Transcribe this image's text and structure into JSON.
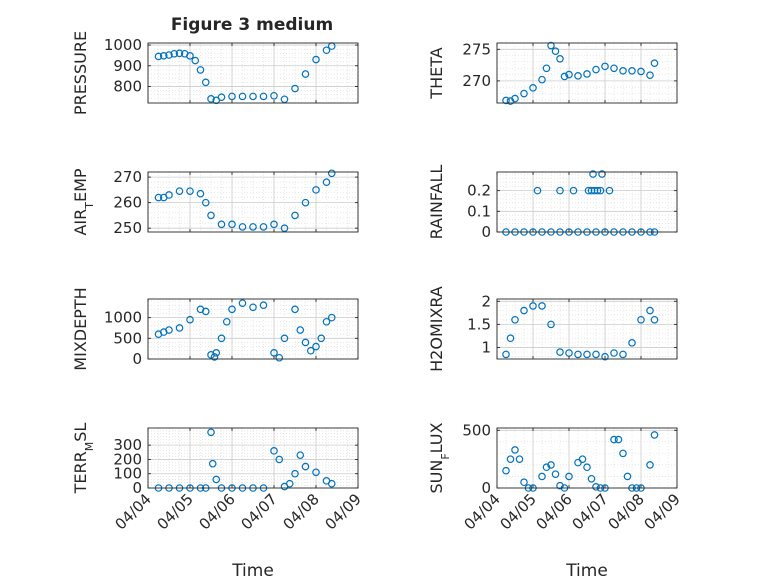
{
  "figure": {
    "title": "Figure 3 medium"
  },
  "colors": {
    "marker": "#0072BD",
    "axis": "#262626",
    "grid": "#d9d9d9",
    "background": "#ffffff"
  },
  "chart_data": [
    {
      "type": "scatter",
      "ylabel": "PRESSURE",
      "title": "Figure 3 medium",
      "xlabel": "",
      "xlim": [
        "04/04",
        "04/09"
      ],
      "xticks": [
        "04/04",
        "04/05",
        "04/06",
        "04/07",
        "04/08",
        "04/09"
      ],
      "xticklabels_visible": false,
      "ylim": [
        720,
        1010
      ],
      "yticks": [
        800,
        900,
        1000
      ],
      "grid": true,
      "x": [
        "04/04 06:00",
        "04/04 09:00",
        "04/04 12:00",
        "04/04 15:00",
        "04/04 18:00",
        "04/04 21:00",
        "04/05 00:00",
        "04/05 03:00",
        "04/05 06:00",
        "04/05 09:00",
        "04/05 12:00",
        "04/05 15:00",
        "04/05 18:00",
        "04/06 00:00",
        "04/06 06:00",
        "04/06 12:00",
        "04/06 18:00",
        "04/07 00:00",
        "04/07 06:00",
        "04/07 12:00",
        "04/07 18:00",
        "04/08 00:00",
        "04/08 06:00",
        "04/08 09:00"
      ],
      "y": [
        945,
        948,
        952,
        958,
        960,
        958,
        948,
        925,
        880,
        820,
        740,
        733,
        748,
        752,
        752,
        752,
        752,
        755,
        738,
        790,
        860,
        930,
        975,
        995
      ]
    },
    {
      "type": "scatter",
      "ylabel": "THETA",
      "xlabel": "",
      "xlim": [
        "04/04",
        "04/09"
      ],
      "xticks": [
        "04/04",
        "04/05",
        "04/06",
        "04/07",
        "04/08",
        "04/09"
      ],
      "xticklabels_visible": false,
      "ylim": [
        266.5,
        276
      ],
      "yticks": [
        270,
        275
      ],
      "grid": true,
      "x": [
        "04/04 06:00",
        "04/04 09:00",
        "04/04 12:00",
        "04/04 18:00",
        "04/05 00:00",
        "04/05 06:00",
        "04/05 09:00",
        "04/05 12:00",
        "04/05 15:00",
        "04/05 18:00",
        "04/05 21:00",
        "04/06 00:00",
        "04/06 06:00",
        "04/06 12:00",
        "04/06 18:00",
        "04/07 00:00",
        "04/07 06:00",
        "04/07 12:00",
        "04/07 18:00",
        "04/08 00:00",
        "04/08 06:00",
        "04/08 09:00"
      ],
      "y": [
        266.9,
        266.8,
        267.2,
        268.0,
        268.9,
        270.2,
        272.0,
        275.6,
        274.7,
        273.5,
        270.7,
        271.0,
        270.8,
        271.1,
        271.8,
        272.3,
        272.0,
        271.6,
        271.6,
        271.5,
        270.9,
        272.8
      ]
    },
    {
      "type": "scatter",
      "ylabel": "AIR_TEMP",
      "xlabel": "",
      "xlim": [
        "04/04",
        "04/09"
      ],
      "xticks": [
        "04/04",
        "04/05",
        "04/06",
        "04/07",
        "04/08",
        "04/09"
      ],
      "xticklabels_visible": false,
      "ylim": [
        248.5,
        272
      ],
      "yticks": [
        250,
        260,
        270
      ],
      "grid": true,
      "x": [
        "04/04 06:00",
        "04/04 09:00",
        "04/04 12:00",
        "04/04 18:00",
        "04/05 00:00",
        "04/05 06:00",
        "04/05 09:00",
        "04/05 12:00",
        "04/05 18:00",
        "04/06 00:00",
        "04/06 06:00",
        "04/06 12:00",
        "04/06 18:00",
        "04/07 00:00",
        "04/07 06:00",
        "04/07 12:00",
        "04/07 18:00",
        "04/08 00:00",
        "04/08 06:00",
        "04/08 09:00"
      ],
      "y": [
        262.0,
        262.0,
        263.0,
        264.5,
        264.5,
        263.5,
        260.0,
        255.0,
        251.5,
        251.5,
        250.5,
        250.5,
        250.5,
        251.5,
        250.0,
        255.0,
        260.0,
        265.0,
        268.0,
        271.5
      ]
    },
    {
      "type": "scatter",
      "ylabel": "RAINFALL",
      "xlabel": "",
      "xlim": [
        "04/04",
        "04/09"
      ],
      "xticks": [
        "04/04",
        "04/05",
        "04/06",
        "04/07",
        "04/08",
        "04/09"
      ],
      "xticklabels_visible": false,
      "ylim": [
        0,
        0.29
      ],
      "yticks": [
        0,
        0.1,
        0.2
      ],
      "grid": true,
      "x": [
        "04/04 06:00",
        "04/04 12:00",
        "04/04 18:00",
        "04/05 00:00",
        "04/05 06:00",
        "04/05 12:00",
        "04/05 18:00",
        "04/06 00:00",
        "04/06 06:00",
        "04/06 12:00",
        "04/06 18:00",
        "04/07 00:00",
        "04/07 06:00",
        "04/07 12:00",
        "04/07 18:00",
        "04/08 00:00",
        "04/08 06:00",
        "04/08 09:00",
        "04/05 03:00",
        "04/05 18:00",
        "04/06 03:00",
        "04/06 13:00",
        "04/06 15:00",
        "04/06 17:00",
        "04/06 19:00",
        "04/06 21:00",
        "04/06 16:00",
        "04/06 22:00",
        "04/07 03:00"
      ],
      "y": [
        0,
        0,
        0,
        0,
        0,
        0,
        0,
        0,
        0,
        0,
        0,
        0,
        0,
        0,
        0,
        0,
        0,
        0,
        0.2,
        0.2,
        0.2,
        0.2,
        0.2,
        0.2,
        0.2,
        0.2,
        0.28,
        0.28,
        0.2
      ]
    },
    {
      "type": "scatter",
      "ylabel": "MIXDEPTH",
      "xlabel": "",
      "xlim": [
        "04/04",
        "04/09"
      ],
      "xticks": [
        "04/04",
        "04/05",
        "04/06",
        "04/07",
        "04/08",
        "04/09"
      ],
      "xticklabels_visible": false,
      "ylim": [
        0,
        1450
      ],
      "yticks": [
        0,
        500,
        1000
      ],
      "grid": true,
      "x": [
        "04/04 06:00",
        "04/04 09:00",
        "04/04 12:00",
        "04/04 18:00",
        "04/05 00:00",
        "04/05 06:00",
        "04/05 09:00",
        "04/05 12:00",
        "04/05 14:00",
        "04/05 15:00",
        "04/05 18:00",
        "04/05 21:00",
        "04/06 00:00",
        "04/06 06:00",
        "04/06 12:00",
        "04/06 18:00",
        "04/07 00:00",
        "04/07 03:00",
        "04/07 06:00",
        "04/07 12:00",
        "04/07 15:00",
        "04/07 18:00",
        "04/07 21:00",
        "04/08 00:00",
        "04/08 03:00",
        "04/08 06:00",
        "04/08 09:00"
      ],
      "y": [
        600,
        650,
        700,
        750,
        950,
        1200,
        1150,
        100,
        50,
        150,
        500,
        900,
        1200,
        1350,
        1250,
        1300,
        150,
        30,
        500,
        1200,
        700,
        400,
        200,
        300,
        500,
        900,
        1000
      ]
    },
    {
      "type": "scatter",
      "ylabel": "H2OMIXRA",
      "xlabel": "",
      "xlim": [
        "04/04",
        "04/09"
      ],
      "xticks": [
        "04/04",
        "04/05",
        "04/06",
        "04/07",
        "04/08",
        "04/09"
      ],
      "xticklabels_visible": false,
      "ylim": [
        0.75,
        2.05
      ],
      "yticks": [
        1,
        1.5,
        2
      ],
      "grid": true,
      "x": [
        "04/04 06:00",
        "04/04 09:00",
        "04/04 12:00",
        "04/04 18:00",
        "04/05 00:00",
        "04/05 06:00",
        "04/05 12:00",
        "04/05 18:00",
        "04/06 00:00",
        "04/06 06:00",
        "04/06 12:00",
        "04/06 18:00",
        "04/07 00:00",
        "04/07 06:00",
        "04/07 12:00",
        "04/07 18:00",
        "04/08 00:00",
        "04/08 06:00",
        "04/08 09:00"
      ],
      "y": [
        0.85,
        1.2,
        1.6,
        1.8,
        1.9,
        1.9,
        1.5,
        0.9,
        0.88,
        0.85,
        0.85,
        0.85,
        0.8,
        0.88,
        0.85,
        1.1,
        1.6,
        1.8,
        1.6
      ]
    },
    {
      "type": "scatter",
      "ylabel": "TERR_MSL",
      "xlabel": "Time",
      "xlim": [
        "04/04",
        "04/09"
      ],
      "xticks": [
        "04/04",
        "04/05",
        "04/06",
        "04/07",
        "04/08",
        "04/09"
      ],
      "xticklabels_visible": true,
      "ylim": [
        0,
        420
      ],
      "yticks": [
        0,
        100,
        200,
        300
      ],
      "grid": true,
      "x": [
        "04/04 06:00",
        "04/04 12:00",
        "04/04 18:00",
        "04/05 00:00",
        "04/05 06:00",
        "04/05 09:00",
        "04/05 12:00",
        "04/05 13:00",
        "04/05 15:00",
        "04/05 18:00",
        "04/06 00:00",
        "04/06 06:00",
        "04/06 12:00",
        "04/06 18:00",
        "04/07 00:00",
        "04/07 03:00",
        "04/07 06:00",
        "04/07 09:00",
        "04/07 12:00",
        "04/07 15:00",
        "04/07 18:00",
        "04/08 00:00",
        "04/08 06:00",
        "04/08 09:00"
      ],
      "y": [
        0,
        0,
        0,
        0,
        0,
        0,
        390,
        170,
        60,
        0,
        0,
        0,
        0,
        0,
        260,
        200,
        10,
        30,
        100,
        230,
        150,
        110,
        50,
        30
      ]
    },
    {
      "type": "scatter",
      "ylabel": "SUN_FLUX",
      "xlabel": "Time",
      "xlim": [
        "04/04",
        "04/09"
      ],
      "xticks": [
        "04/04",
        "04/05",
        "04/06",
        "04/07",
        "04/08",
        "04/09"
      ],
      "xticklabels_visible": true,
      "ylim": [
        0,
        520
      ],
      "yticks": [
        0,
        500
      ],
      "grid": true,
      "x": [
        "04/04 06:00",
        "04/04 09:00",
        "04/04 12:00",
        "04/04 15:00",
        "04/04 18:00",
        "04/04 21:00",
        "04/05 00:00",
        "04/05 06:00",
        "04/05 09:00",
        "04/05 12:00",
        "04/05 15:00",
        "04/05 18:00",
        "04/05 21:00",
        "04/06 00:00",
        "04/06 06:00",
        "04/06 09:00",
        "04/06 12:00",
        "04/06 15:00",
        "04/06 18:00",
        "04/06 21:00",
        "04/07 00:00",
        "04/07 06:00",
        "04/07 09:00",
        "04/07 12:00",
        "04/07 15:00",
        "04/07 18:00",
        "04/07 21:00",
        "04/08 00:00",
        "04/08 06:00",
        "04/08 09:00"
      ],
      "y": [
        150,
        250,
        330,
        250,
        50,
        0,
        0,
        100,
        180,
        200,
        120,
        20,
        0,
        100,
        220,
        250,
        180,
        80,
        10,
        0,
        0,
        420,
        420,
        300,
        100,
        0,
        0,
        0,
        200,
        460
      ]
    }
  ]
}
